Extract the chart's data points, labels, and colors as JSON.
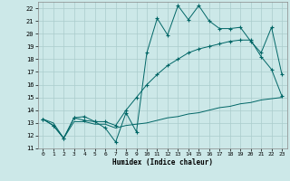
{
  "xlabel": "Humidex (Indice chaleur)",
  "bg_color": "#cce8e8",
  "grid_color": "#aacccc",
  "line_color": "#006666",
  "xlim": [
    -0.5,
    23.5
  ],
  "ylim": [
    11,
    22.5
  ],
  "xticks": [
    0,
    1,
    2,
    3,
    4,
    5,
    6,
    7,
    8,
    9,
    10,
    11,
    12,
    13,
    14,
    15,
    16,
    17,
    18,
    19,
    20,
    21,
    22,
    23
  ],
  "yticks": [
    11,
    12,
    13,
    14,
    15,
    16,
    17,
    18,
    19,
    20,
    21,
    22
  ],
  "line1_x": [
    0,
    1,
    2,
    3,
    4,
    5,
    6,
    7,
    8,
    9,
    10,
    11,
    12,
    13,
    14,
    15,
    16,
    17,
    18,
    19,
    20,
    21,
    22,
    23
  ],
  "line1_y": [
    13.3,
    12.8,
    11.8,
    13.4,
    13.5,
    13.1,
    12.6,
    11.5,
    13.8,
    12.3,
    18.5,
    21.2,
    19.9,
    22.2,
    21.1,
    22.2,
    21.0,
    20.4,
    20.4,
    20.5,
    19.4,
    18.5,
    20.5,
    16.8
  ],
  "line2_x": [
    0,
    1,
    2,
    3,
    4,
    5,
    6,
    7,
    8,
    9,
    10,
    11,
    12,
    13,
    14,
    15,
    16,
    17,
    18,
    19,
    20,
    21,
    22,
    23
  ],
  "line2_y": [
    13.3,
    12.8,
    11.8,
    13.4,
    13.2,
    13.1,
    13.1,
    12.8,
    14.0,
    15.0,
    16.0,
    16.8,
    17.5,
    18.0,
    18.5,
    18.8,
    19.0,
    19.2,
    19.4,
    19.5,
    19.5,
    18.2,
    17.2,
    15.1
  ],
  "line3_x": [
    0,
    1,
    2,
    3,
    4,
    5,
    6,
    7,
    8,
    9,
    10,
    11,
    12,
    13,
    14,
    15,
    16,
    17,
    18,
    19,
    20,
    21,
    22,
    23
  ],
  "line3_y": [
    13.3,
    13.0,
    11.8,
    13.1,
    13.1,
    12.9,
    12.9,
    12.6,
    12.8,
    12.9,
    13.0,
    13.2,
    13.4,
    13.5,
    13.7,
    13.8,
    14.0,
    14.2,
    14.3,
    14.5,
    14.6,
    14.8,
    14.9,
    15.0
  ]
}
